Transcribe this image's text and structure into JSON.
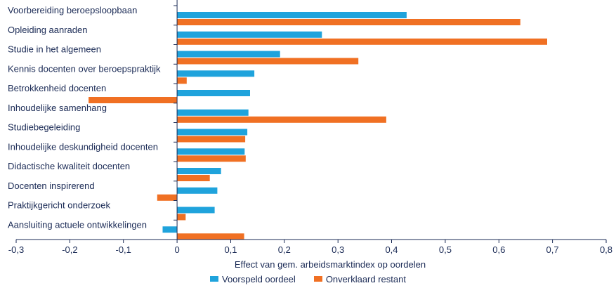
{
  "chart_data": {
    "type": "bar",
    "orientation": "horizontal",
    "categories": [
      "Voorbereiding beroepsloopbaan",
      "Opleiding aanraden",
      "Studie in het algemeen",
      "Kennis docenten over beroepspraktijk",
      "Betrokkenheid docenten",
      "Inhoudelijke samenhang",
      "Studiebegeleiding",
      "Inhoudelijke deskundigheid docenten",
      "Didactische kwaliteit docenten",
      "Docenten inspirerend",
      "Praktijkgericht onderzoek",
      "Aansluiting actuele ontwikkelingen"
    ],
    "series": [
      {
        "name": "Voorspeld oordeel",
        "color": "#1fa3dc",
        "values": [
          0.428,
          0.27,
          0.192,
          0.144,
          0.136,
          0.133,
          0.131,
          0.126,
          0.082,
          0.075,
          0.07,
          -0.027
        ]
      },
      {
        "name": "Onverklaard restant",
        "color": "#f07023",
        "values": [
          0.64,
          0.69,
          0.338,
          0.018,
          -0.165,
          0.39,
          0.127,
          0.128,
          0.061,
          -0.037,
          0.016,
          0.125
        ]
      }
    ],
    "xlim": [
      -0.3,
      0.8
    ],
    "xticks": [
      -0.3,
      -0.2,
      -0.1,
      0,
      0.1,
      0.2,
      0.3,
      0.4,
      0.5,
      0.6,
      0.7,
      0.8
    ],
    "xtick_labels": [
      "-0,3",
      "-0,2",
      "-0,1",
      "0",
      "0,1",
      "0,2",
      "0,3",
      "0,4",
      "0,5",
      "0,6",
      "0,7",
      "0,8"
    ],
    "xlabel": "Effect van gem. arbeidsmarktindex op oordelen",
    "ylabel": "",
    "title": "",
    "grid": false,
    "legend_position": "bottom-center"
  },
  "colors": {
    "axis": "#1a2a55",
    "text": "#1a2a55"
  }
}
